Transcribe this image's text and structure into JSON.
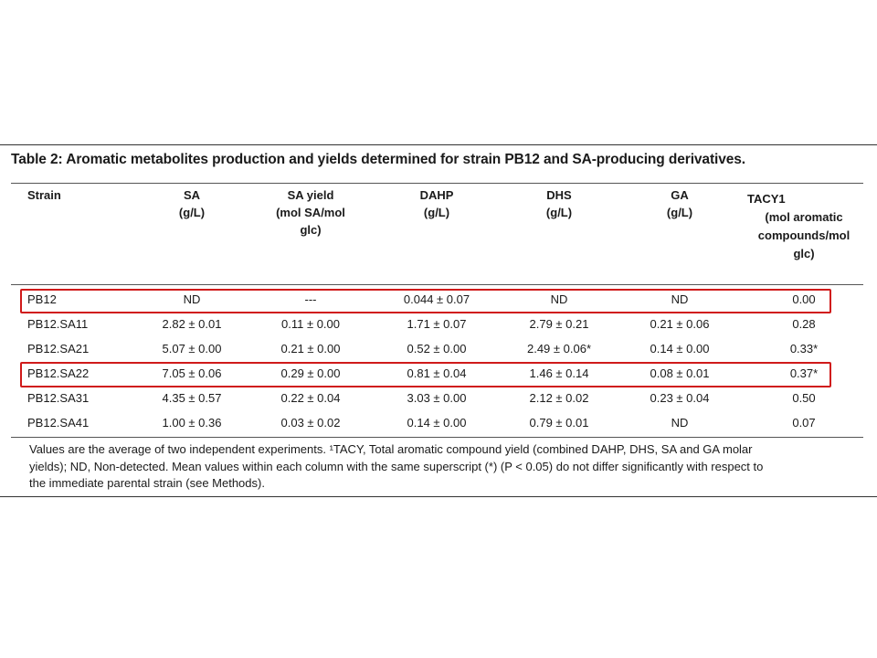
{
  "table": {
    "caption": "Table 2: Aromatic metabolites production and yields determined for strain PB12 and SA-producing derivatives.",
    "headers": {
      "strain": "Strain",
      "sa": [
        "SA",
        "(g/L)"
      ],
      "sa_yield": [
        "SA yield",
        "(mol SA/mol",
        "glc)"
      ],
      "dahp": [
        "DAHP",
        "(g/L)"
      ],
      "dhs": [
        "DHS",
        "(g/L)"
      ],
      "ga": [
        "GA",
        "(g/L)"
      ],
      "tacy": [
        "TACY1",
        "(mol aromatic",
        "compounds/mol",
        "glc)"
      ]
    },
    "rows": [
      {
        "strain": "PB12",
        "sa": "ND",
        "sa_yield": "---",
        "dahp": "0.044 ± 0.07",
        "dhs": "ND",
        "ga": "ND",
        "tacy": "0.00"
      },
      {
        "strain": "PB12.SA11",
        "sa": "2.82 ± 0.01",
        "sa_yield": "0.11 ± 0.00",
        "dahp": "1.71 ± 0.07",
        "dhs": "2.79 ± 0.21",
        "ga": "0.21 ± 0.06",
        "tacy": "0.28"
      },
      {
        "strain": "PB12.SA21",
        "sa": "5.07 ± 0.00",
        "sa_yield": "0.21 ± 0.00",
        "dahp": "0.52 ± 0.00",
        "dhs": "2.49 ± 0.06*",
        "ga": "0.14 ± 0.00",
        "tacy": "0.33*"
      },
      {
        "strain": "PB12.SA22",
        "sa": "7.05 ± 0.06",
        "sa_yield": "0.29 ± 0.00",
        "dahp": "0.81 ± 0.04",
        "dhs": "1.46 ± 0.14",
        "ga": "0.08 ± 0.01",
        "tacy": "0.37*"
      },
      {
        "strain": "PB12.SA31",
        "sa": "4.35 ± 0.57",
        "sa_yield": "0.22 ± 0.04",
        "dahp": "3.03 ± 0.00",
        "dhs": "2.12 ± 0.02",
        "ga": "0.23 ± 0.04",
        "tacy": "0.50"
      },
      {
        "strain": "PB12.SA41",
        "sa": "1.00 ± 0.36",
        "sa_yield": "0.03 ± 0.02",
        "dahp": "0.14 ± 0.00",
        "dhs": "0.79 ± 0.01",
        "ga": "ND",
        "tacy": "0.07"
      }
    ],
    "footnote_lines": [
      "Values are the average of two independent experiments. ¹TACY, Total aromatic compound yield (combined DAHP, DHS, SA and GA molar",
      "yields); ND, Non-detected. Mean values within each column with the same superscript (*) (P < 0.05) do not differ significantly with respect to",
      "the immediate parental strain (see Methods)."
    ],
    "highlight_color": "#d01a1a"
  }
}
